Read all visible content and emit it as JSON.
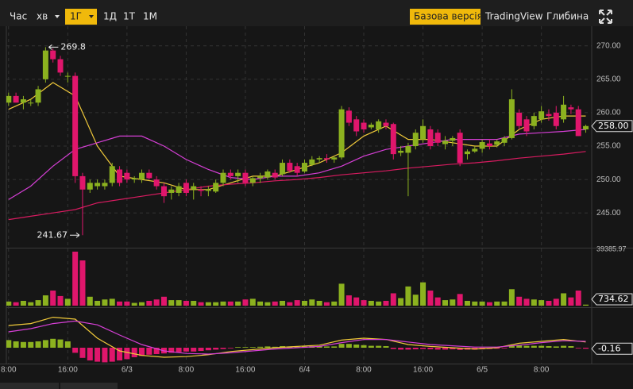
{
  "toolbar": {
    "intervals": [
      "Час",
      "хв",
      "1Г",
      "1Д",
      "1Т",
      "1М"
    ],
    "views": [
      "Базова версія",
      "TradingView",
      "Глибина"
    ]
  },
  "chart_data": {
    "type": "candlestick",
    "up_color": "#8cb21f",
    "down_color": "#e0166c",
    "x": [
      0,
      1,
      2,
      3,
      4,
      5,
      6,
      7,
      8,
      9,
      10,
      11,
      12,
      13,
      14,
      15,
      16,
      17,
      18,
      19,
      20,
      21,
      22,
      23,
      24,
      25,
      26,
      27,
      28,
      29,
      30,
      31,
      32,
      33,
      34,
      35,
      36,
      37,
      38,
      39,
      40,
      41,
      42,
      43,
      44,
      45,
      46,
      47,
      48,
      49,
      50,
      51,
      52,
      53,
      54,
      55,
      56,
      57,
      58,
      59,
      60,
      61,
      62,
      63,
      64,
      65,
      66,
      67,
      68,
      69,
      70,
      71,
      72,
      73,
      74,
      75,
      76,
      77,
      78
    ],
    "open": [
      261.5,
      262.5,
      261.5,
      261.5,
      261.5,
      265,
      269.3,
      268,
      265.5,
      265.5,
      250.5,
      248.5,
      249,
      249,
      249.5,
      251.5,
      251,
      250,
      250,
      251,
      250,
      249,
      248,
      248,
      249.5,
      248.5,
      248.5,
      248.3,
      248.2,
      249.5,
      251,
      250.5,
      251,
      249.5,
      250.2,
      250.3,
      251,
      250.8,
      252.5,
      252,
      251.2,
      252.2,
      253,
      253.2,
      253,
      253.3,
      260.3,
      259,
      258.5,
      257.8,
      257.5,
      258.5,
      258.3,
      254,
      254,
      255,
      256,
      257.5,
      257,
      255.3,
      255.8,
      257,
      253.8,
      254.2,
      254.6,
      255.4,
      255.2,
      255.5,
      256.2,
      260,
      259,
      258,
      259,
      259.8,
      260,
      259,
      260.8,
      260.5,
      257.5
    ],
    "high": [
      263,
      263,
      262.5,
      262,
      264,
      269.8,
      269.61,
      268.5,
      266,
      266,
      251,
      250,
      250,
      250,
      252.5,
      252,
      251.5,
      250.5,
      251.5,
      251.5,
      250.5,
      249.5,
      249,
      249.5,
      250,
      249.5,
      249,
      249,
      250,
      251.5,
      251.5,
      251.5,
      251.5,
      250.5,
      251,
      251.5,
      251.5,
      253,
      253,
      252.5,
      253,
      253.5,
      253.5,
      253.8,
      253.5,
      261,
      260.8,
      259.5,
      259,
      258.5,
      259,
      259,
      258.5,
      255,
      255.5,
      257.5,
      259,
      258,
      257.5,
      256.5,
      256.5,
      257.5,
      254.5,
      255,
      256,
      256,
      256,
      256.5,
      263.5,
      260.5,
      259.5,
      260,
      261,
      260.5,
      261,
      262.5,
      261.2,
      261,
      258.2
    ],
    "low": [
      261,
      261.5,
      260.5,
      261,
      261,
      264.5,
      267.5,
      265.5,
      264.5,
      249.5,
      241.67,
      248,
      248.5,
      248.5,
      249,
      249,
      249.5,
      249.5,
      249.5,
      250,
      248.5,
      246.5,
      247,
      247.5,
      247.5,
      247,
      247.5,
      247.5,
      248,
      249,
      250,
      249.5,
      249,
      249,
      249.5,
      250,
      250,
      250.5,
      251,
      250.5,
      251,
      252,
      252.5,
      252.5,
      252.5,
      253,
      258,
      256.5,
      257,
      257.5,
      257,
      257.5,
      253,
      253.5,
      247.5,
      254.5,
      255.5,
      254.5,
      255,
      254.5,
      255,
      252,
      253,
      254,
      254,
      254.5,
      254.8,
      255,
      256,
      257.5,
      256.5,
      257.5,
      258.5,
      258.8,
      257.5,
      258.5,
      259.8,
      256.5,
      257
    ],
    "close": [
      262.5,
      261.5,
      262,
      261.5,
      263.5,
      269.3,
      268,
      266,
      265.5,
      250.5,
      248.5,
      249.5,
      249.5,
      249.5,
      252,
      249.5,
      250,
      250.2,
      251,
      250.2,
      249,
      247.5,
      248.5,
      249,
      248,
      249,
      248.3,
      248.5,
      249.5,
      251,
      250.5,
      251,
      249.5,
      250.2,
      250.5,
      251.2,
      250.3,
      252.5,
      251.3,
      251,
      252.5,
      253,
      253.2,
      253,
      253.3,
      260.5,
      258.5,
      257.2,
      257.5,
      258.2,
      258.7,
      258,
      253.8,
      254.3,
      255,
      257,
      258,
      255,
      255.5,
      255.8,
      256.2,
      252.5,
      254.2,
      254.6,
      255.6,
      255,
      255.7,
      256.2,
      262,
      258,
      257.2,
      259.5,
      260.2,
      259.5,
      258,
      261.2,
      260.5,
      256.5,
      258
    ],
    "price_tag": "258.00",
    "ma_lines": [
      {
        "color": "#f0c93a",
        "x": [
          0,
          3,
          6,
          9,
          12,
          15,
          18,
          21,
          24,
          27,
          30,
          33,
          36,
          39,
          42,
          45,
          48,
          51,
          54,
          57,
          60,
          63,
          66,
          69,
          72,
          75,
          78
        ],
        "values": [
          260.5,
          262,
          264.5,
          262.5,
          255,
          250.5,
          250,
          249.5,
          248.5,
          248.5,
          249.5,
          250.5,
          250.5,
          251.5,
          252.5,
          254,
          256.5,
          258,
          256,
          256,
          255.5,
          255,
          255,
          257.5,
          259,
          259.5,
          259.5
        ]
      },
      {
        "color": "#d63fd6",
        "x": [
          0,
          3,
          6,
          9,
          12,
          15,
          18,
          21,
          24,
          27,
          30,
          33,
          36,
          39,
          42,
          45,
          48,
          51,
          54,
          57,
          60,
          63,
          66,
          69,
          72,
          75,
          78
        ],
        "values": [
          247,
          249,
          252,
          254.5,
          255.5,
          256.5,
          256.5,
          255,
          253,
          251.5,
          250.3,
          250,
          250.5,
          250.5,
          251,
          252,
          253.5,
          254.5,
          255,
          255.5,
          256,
          256,
          256,
          256.8,
          257,
          257.2,
          257.5
        ]
      },
      {
        "color": "#d81b60",
        "x": [
          0,
          3,
          6,
          9,
          12,
          15,
          18,
          21,
          24,
          27,
          30,
          33,
          36,
          39,
          42,
          45,
          48,
          51,
          54,
          57,
          60,
          63,
          66,
          69,
          72,
          75,
          78
        ],
        "values": [
          244,
          244.5,
          245,
          245.5,
          246.5,
          247,
          247.5,
          248,
          248.5,
          249,
          249.3,
          249.5,
          249.8,
          250,
          250.3,
          250.7,
          251,
          251.3,
          251.7,
          252,
          252.3,
          252.5,
          252.8,
          253.2,
          253.5,
          253.8,
          254.2
        ]
      }
    ],
    "xlim": [
      -0.3,
      78.8
    ],
    "xticks": [
      {
        "value": 0,
        "label": "8:00"
      },
      {
        "value": 8,
        "label": "16:00"
      },
      {
        "value": 16,
        "label": "6/3"
      },
      {
        "value": 24,
        "label": "8:00"
      },
      {
        "value": 32,
        "label": "16:00"
      },
      {
        "value": 40,
        "label": "6/4"
      },
      {
        "value": 48,
        "label": "8:00"
      },
      {
        "value": 56,
        "label": "16:00"
      },
      {
        "value": 64,
        "label": "6/5"
      },
      {
        "value": 72,
        "label": "8:00"
      }
    ],
    "ylim": [
      239.8,
      272.7
    ],
    "yticks": [
      {
        "value": 245,
        "label": "245.00"
      },
      {
        "value": 250,
        "label": "250.00"
      },
      {
        "value": 255,
        "label": "255.00"
      },
      {
        "value": 260,
        "label": "260.00"
      },
      {
        "value": 265,
        "label": "265.00"
      },
      {
        "value": 270,
        "label": "270.00"
      }
    ],
    "grid": true,
    "volumes": [
      3000,
      2500,
      3500,
      2500,
      4000,
      7500,
      11000,
      7000,
      5000,
      39385.97,
      33000,
      6500,
      3500,
      4500,
      5000,
      3000,
      3000,
      2000,
      2500,
      3500,
      4500,
      6500,
      4000,
      4000,
      3500,
      3500,
      2500,
      2500,
      2500,
      3000,
      3000,
      3000,
      4500,
      5000,
      3000,
      2500,
      3000,
      3500,
      2500,
      4000,
      3500,
      4500,
      3500,
      2500,
      3000,
      16000,
      7500,
      6000,
      4000,
      3500,
      3000,
      3500,
      9000,
      5500,
      14000,
      8000,
      17000,
      11000,
      6000,
      4000,
      4500,
      8500,
      3500,
      3000,
      3000,
      2500,
      3000,
      3000,
      12000,
      6500,
      5000,
      4500,
      4000,
      3500,
      5000,
      9000,
      6000,
      11000,
      734.62
    ],
    "volume_ylim": [
      0,
      39385.97
    ],
    "macd_hist": [
      1.2,
      1.0,
      0.9,
      0.9,
      1.0,
      1.2,
      1.4,
      1.3,
      1.0,
      -0.8,
      -1.6,
      -2.0,
      -2.2,
      -2.3,
      -2.2,
      -2.0,
      -1.8,
      -1.5,
      -1.3,
      -1.1,
      -1.0,
      -0.9,
      -0.8,
      -0.7,
      -0.6,
      -0.6,
      -0.5,
      -0.4,
      -0.3,
      -0.2,
      -0.1,
      0.1,
      0.1,
      0.1,
      0.15,
      0.2,
      0.15,
      0.25,
      0.2,
      0.15,
      0.2,
      0.25,
      0.25,
      0.2,
      0.2,
      0.6,
      0.6,
      0.5,
      0.4,
      0.3,
      0.3,
      0.25,
      -0.2,
      -0.3,
      -0.3,
      -0.25,
      -0.2,
      -0.25,
      -0.3,
      -0.3,
      -0.25,
      -0.35,
      -0.3,
      -0.3,
      -0.25,
      -0.2,
      -0.15,
      -0.1,
      0.3,
      0.35,
      0.3,
      0.3,
      0.3,
      0.25,
      0.2,
      0.3,
      0.25,
      -0.1,
      -0.16
    ],
    "macd_lines": [
      {
        "color": "#f0c93a",
        "x": [
          0,
          3,
          6,
          9,
          12,
          15,
          18,
          21,
          24,
          27,
          30,
          33,
          36,
          39,
          42,
          45,
          48,
          51,
          54,
          57,
          60,
          63,
          66,
          69,
          72,
          75,
          78
        ],
        "values": [
          3.5,
          3.8,
          4.8,
          4.5,
          1.5,
          -0.5,
          -1.2,
          -1.5,
          -1.4,
          -1.1,
          -0.6,
          -0.3,
          0,
          0.2,
          0.4,
          1.2,
          1.5,
          1.3,
          0.5,
          0.2,
          0,
          -0.2,
          0,
          0.7,
          1.0,
          1.3,
          0.9
        ]
      },
      {
        "color": "#d63fd6",
        "x": [
          0,
          3,
          6,
          9,
          12,
          15,
          18,
          21,
          24,
          27,
          30,
          33,
          36,
          39,
          42,
          45,
          48,
          51,
          54,
          57,
          60,
          63,
          66,
          69,
          72,
          75,
          78
        ],
        "values": [
          2.5,
          3.0,
          3.8,
          4.2,
          3.6,
          2.0,
          0.5,
          -0.5,
          -0.9,
          -1.0,
          -0.8,
          -0.5,
          -0.2,
          0,
          0.2,
          0.8,
          1.3,
          1.3,
          0.9,
          0.5,
          0.3,
          0.1,
          0.1,
          0.4,
          0.8,
          1.1,
          1.0
        ]
      }
    ],
    "macd_ylim": [
      -2.5,
      6.0
    ]
  }
}
